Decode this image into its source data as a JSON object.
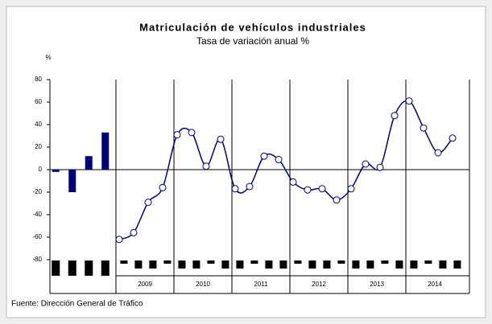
{
  "chart_data": {
    "type": "line",
    "title": "Matriculación de vehículos industriales",
    "subtitle": "Tasa de variación anual %",
    "y_label": "%",
    "source": "Fuente: Dirección General de Tráfico",
    "bars": {
      "values": [
        -2,
        -20,
        12,
        33
      ],
      "color": "#00007a"
    },
    "years": [
      "2009",
      "2010",
      "2011",
      "2012",
      "2013",
      "2014"
    ],
    "series": [
      {
        "color": "#00007a",
        "values": [
          -62,
          -56,
          -29,
          -16,
          31,
          33,
          3,
          27,
          -17,
          -15,
          12,
          9,
          -11,
          -18,
          -17,
          -27,
          -17,
          5,
          2,
          48,
          61,
          37,
          15,
          28
        ]
      }
    ],
    "ylim": [
      -80,
      80
    ],
    "yticks": [
      -80,
      -60,
      -40,
      -20,
      0,
      20,
      40,
      60,
      80
    ]
  }
}
